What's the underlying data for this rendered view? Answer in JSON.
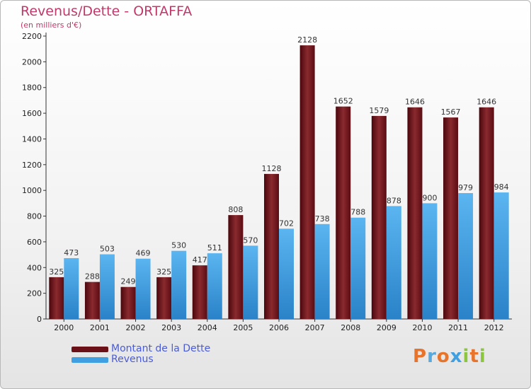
{
  "title": "Revenus/Dette - ORTAFFA",
  "subtitle": "(en milliers d'€)",
  "logo": "Proxiti",
  "colors": {
    "dette": "#6b1016",
    "revenus": "#3f9fe0",
    "title": "#c0396a",
    "legend_text": "#4a5bd8"
  },
  "chart_data": {
    "type": "bar",
    "title": "Revenus/Dette - ORTAFFA",
    "subtitle": "(en milliers d'€)",
    "categories": [
      "2000",
      "2001",
      "2002",
      "2003",
      "2004",
      "2005",
      "2006",
      "2007",
      "2008",
      "2009",
      "2010",
      "2011",
      "2012"
    ],
    "series": [
      {
        "name": "Montant de la Dette",
        "values": [
          325,
          288,
          249,
          325,
          417,
          808,
          1128,
          2128,
          1652,
          1579,
          1646,
          1567,
          1646
        ]
      },
      {
        "name": "Revenus",
        "values": [
          473,
          503,
          469,
          530,
          511,
          570,
          702,
          738,
          788,
          878,
          900,
          979,
          984
        ]
      }
    ],
    "ylim": [
      0,
      2200
    ],
    "yticks": [
      0,
      200,
      400,
      600,
      800,
      1000,
      1200,
      1400,
      1600,
      1800,
      2000,
      2200
    ],
    "grid": false,
    "legend": "bottom-left"
  }
}
